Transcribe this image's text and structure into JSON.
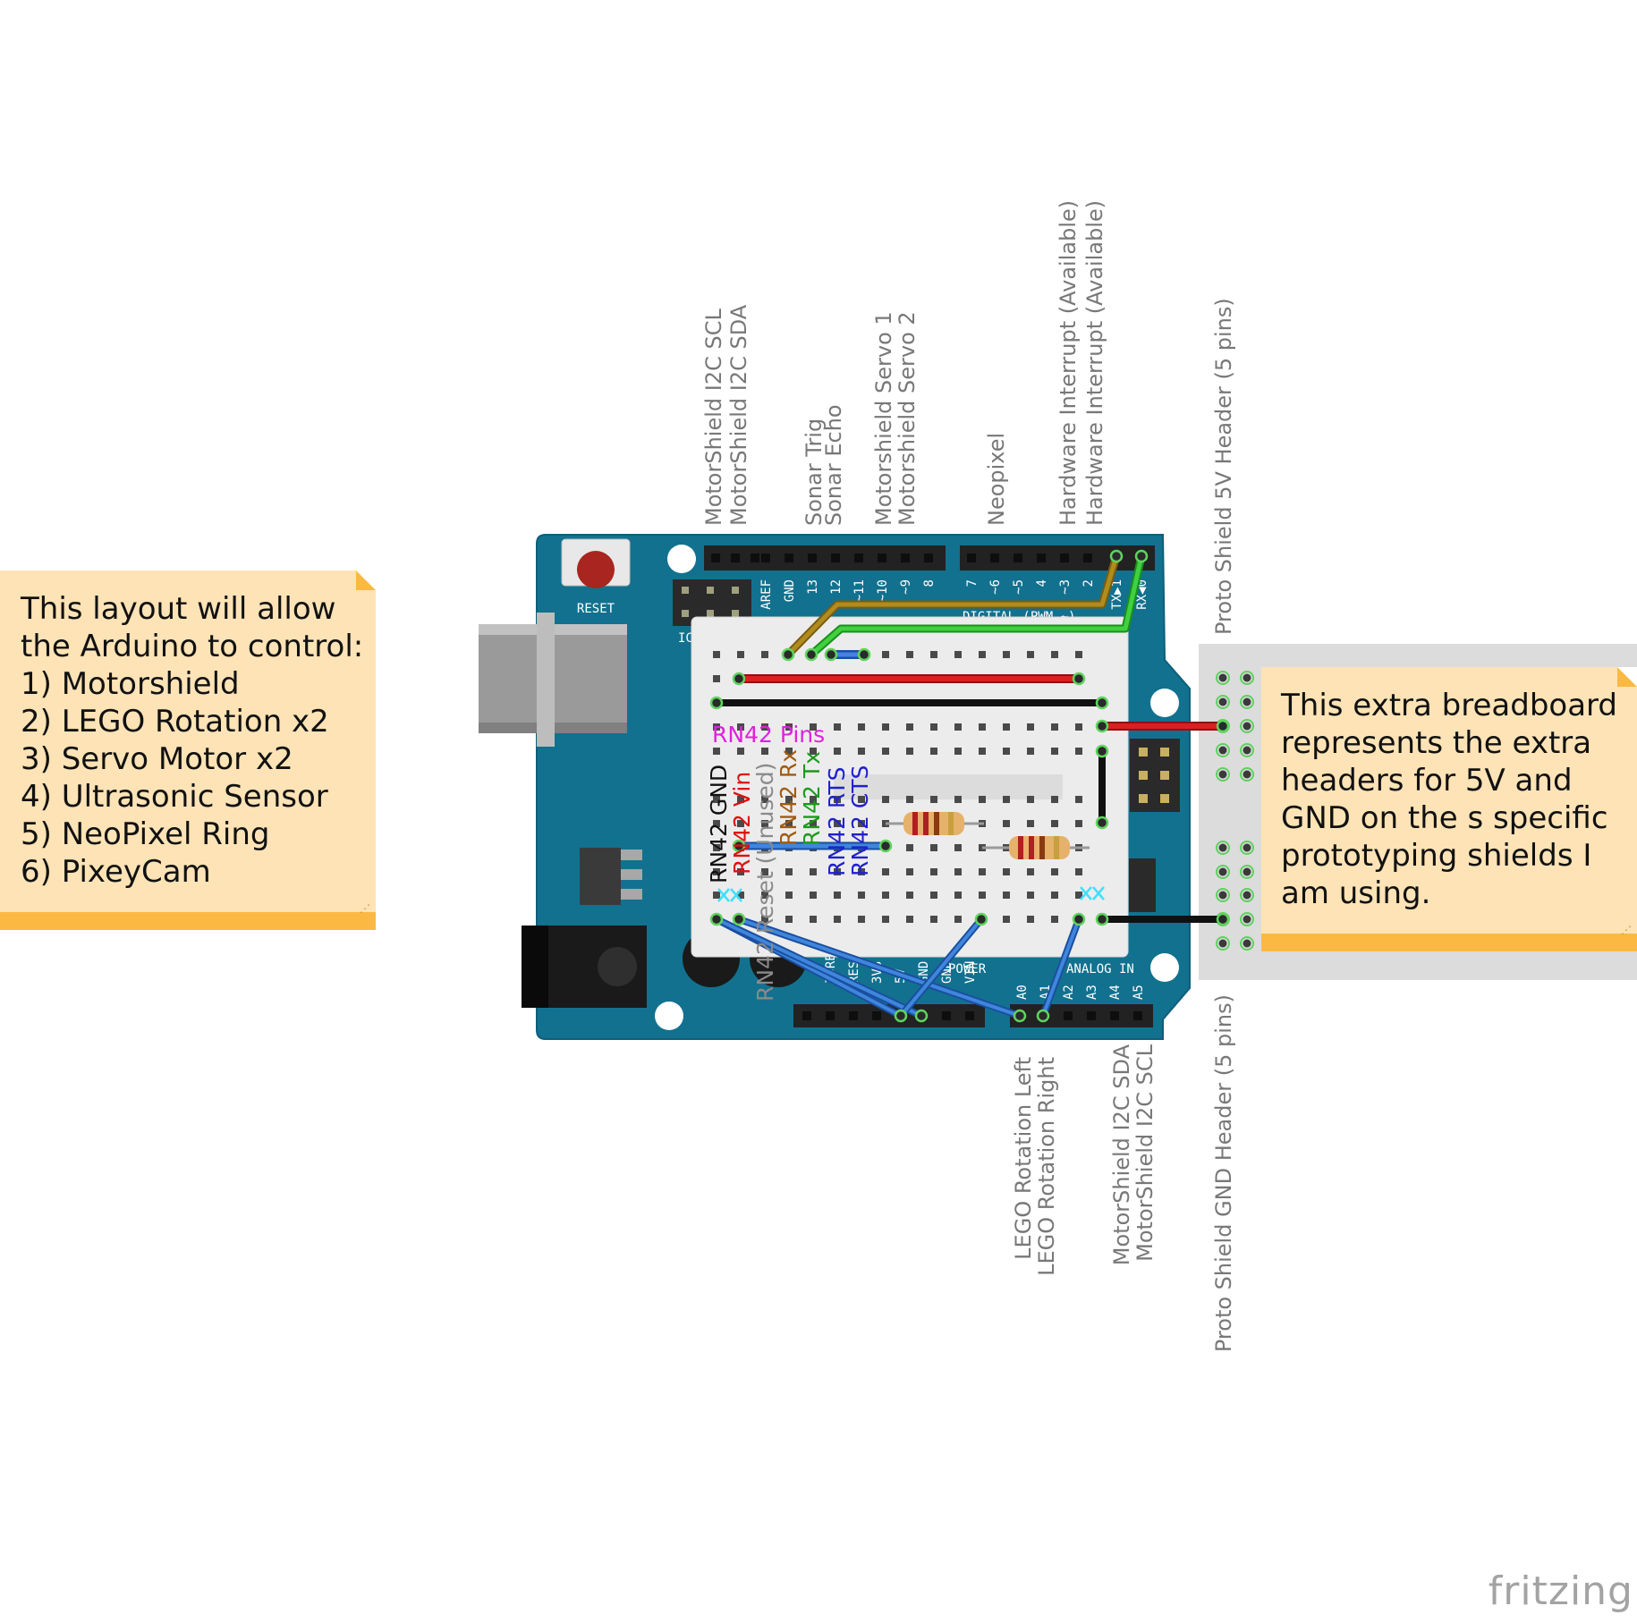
{
  "pin_labels_top": [
    {
      "text": "MotorShield I2C SCL"
    },
    {
      "text": "MotorShield I2C SDA"
    },
    {
      "text": "Sonar Trig"
    },
    {
      "text": "Sonar Echo"
    },
    {
      "text": "Motorshield Servo 1"
    },
    {
      "text": "Motorshield Servo 2"
    },
    {
      "text": "Neopixel"
    },
    {
      "text": "Hardware Interrupt (Available)"
    },
    {
      "text": "Hardware Interrupt (Available)"
    },
    {
      "text": "Proto Shield 5V Header (5 pins)"
    }
  ],
  "pin_labels_bottom": [
    {
      "text": "LEGO Rotation Left"
    },
    {
      "text": "LEGO Rotation Right"
    },
    {
      "text": "MotorShield I2C SDA"
    },
    {
      "text": "MotorShield I2C SCL"
    },
    {
      "text": "Proto Shield GND Header (5 pins)"
    }
  ],
  "rn42": {
    "title": "RN42 Pins",
    "title_color": "#e020e0",
    "pins": [
      {
        "text": "RN42 GND",
        "color": "#111111"
      },
      {
        "text": "RN42 Vin",
        "color": "#e01010"
      },
      {
        "text": "RN42 Reset (Unused)",
        "color": "#8a8a8a"
      },
      {
        "text": "RN42 Rx",
        "color": "#a05a10"
      },
      {
        "text": "RN42 Tx",
        "color": "#1a9a1a"
      },
      {
        "text": "RN42 RTS",
        "color": "#2020d0"
      },
      {
        "text": "RN42 CTS",
        "color": "#2020d0"
      }
    ]
  },
  "board": {
    "reset_label": "RESET",
    "top_header_pins": [
      "AREF",
      "GND",
      "13",
      "12",
      "~11",
      "~10",
      "~9",
      "8",
      "7",
      "~6",
      "~5",
      "4",
      "~3",
      "2",
      "TX▶1",
      "RX◀0"
    ],
    "bottom_power_pins": [
      "IOREF",
      "RESET",
      "3V3",
      "5V",
      "GND",
      "GND",
      "VIN"
    ],
    "bottom_analog_pins": [
      "A0",
      "A1",
      "A2",
      "A3",
      "A4",
      "A5"
    ],
    "digital_label": "DIGITAL (PWM ~)",
    "power_label": "POWER",
    "analog_label": "ANALOG IN",
    "icsp_label": "IC"
  },
  "notes": {
    "left": [
      "This layout will allow",
      "the Arduino to control:",
      "1) Motorshield",
      "2) LEGO Rotation x2",
      "3) Servo Motor x2",
      "4) Ultrasonic Sensor",
      "5) NeoPixel Ring",
      "6) PixeyCam"
    ],
    "right": [
      "This extra breadboard",
      "represents the extra",
      "headers for 5V and",
      "GND on the s specific",
      "prototyping shields I",
      "am using."
    ]
  },
  "logo": "fritzing",
  "colors": {
    "board": "#12718f",
    "breadboard": "#ececec",
    "wire_red": "#d01e1e",
    "wire_black": "#222222",
    "wire_blue": "#3a7fd6",
    "wire_green": "#38c838",
    "wire_brown": "#a8841c",
    "note_bg": "#fde3b6",
    "note_accent": "#fbb943"
  }
}
